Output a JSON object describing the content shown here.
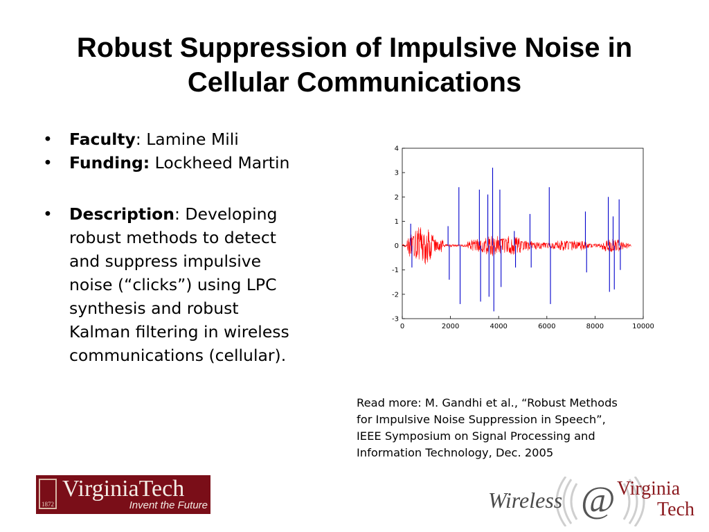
{
  "slide": {
    "title_line1": "Robust Suppression of Impulsive Noise in",
    "title_line2": "Cellular Communications"
  },
  "bullets": {
    "faculty": {
      "label": "Faculty",
      "sep": ": ",
      "value": "Lamine Mili"
    },
    "funding": {
      "label": "Funding:",
      "sep": " ",
      "value": "Lockheed Martin"
    },
    "description": {
      "label": "Description",
      "lines": [
        ": Developing",
        "robust methods to detect",
        "and suppress impulsive",
        "noise (“clicks”) using LPC",
        "synthesis and robust",
        "Kalman filtering in wireless",
        "communications (cellular)."
      ]
    }
  },
  "read_more": {
    "lines": [
      "Read more: M. Gandhi et al., “Robust Methods",
      "for Impulsive Noise Suppression in Speech”,",
      "IEEE Symposium on Signal Processing and",
      "Information Technology, Dec. 2005"
    ]
  },
  "logos": {
    "vt_wordmark": "VirginiaTech",
    "vt_tagline": "Invent the Future",
    "vt_seal_year": "1872",
    "wireless_text": "Wireless",
    "wireless_at": "@",
    "wireless_vt_line1": "Virginia",
    "wireless_vt_line2": "Tech"
  },
  "colors": {
    "vt_maroon": "#7a0e18",
    "signal_red": "#ff0000",
    "spike_blue": "#0000cc"
  },
  "chart_data": {
    "type": "line",
    "xlim": [
      0,
      10000
    ],
    "ylim": [
      -3,
      4
    ],
    "xticks": [
      0,
      2000,
      4000,
      6000,
      8000,
      10000
    ],
    "yticks": [
      4,
      3,
      2,
      1,
      0,
      -1,
      -2,
      -3
    ],
    "grid": false,
    "signal_segments": [
      {
        "start": 200,
        "end": 1700,
        "amp": 0.85
      },
      {
        "start": 2700,
        "end": 6100,
        "amp": 0.45
      },
      {
        "start": 6100,
        "end": 8300,
        "amp": 0.25
      },
      {
        "start": 8300,
        "end": 9400,
        "amp": 0.35
      }
    ],
    "spikes": [
      {
        "x": 350,
        "y": 0.9
      },
      {
        "x": 400,
        "y": -0.9
      },
      {
        "x": 1900,
        "y": 0.8
      },
      {
        "x": 1950,
        "y": -1.4
      },
      {
        "x": 2350,
        "y": 2.4
      },
      {
        "x": 2400,
        "y": -2.4
      },
      {
        "x": 3200,
        "y": 2.3
      },
      {
        "x": 3250,
        "y": -2.3
      },
      {
        "x": 3550,
        "y": 2.1
      },
      {
        "x": 3600,
        "y": -2.1
      },
      {
        "x": 3750,
        "y": 3.2
      },
      {
        "x": 3800,
        "y": -2.7
      },
      {
        "x": 4050,
        "y": 2.3
      },
      {
        "x": 4100,
        "y": -1.7
      },
      {
        "x": 4650,
        "y": 0.6
      },
      {
        "x": 4700,
        "y": -0.9
      },
      {
        "x": 5300,
        "y": 1.3
      },
      {
        "x": 5350,
        "y": -0.9
      },
      {
        "x": 6100,
        "y": 2.4
      },
      {
        "x": 6150,
        "y": -2.4
      },
      {
        "x": 7600,
        "y": 1.4
      },
      {
        "x": 7650,
        "y": -1.1
      },
      {
        "x": 8550,
        "y": 2.0
      },
      {
        "x": 8600,
        "y": -1.9
      },
      {
        "x": 8750,
        "y": 1.2
      },
      {
        "x": 8800,
        "y": -1.8
      },
      {
        "x": 9000,
        "y": 1.9
      },
      {
        "x": 9050,
        "y": -1.0
      }
    ]
  }
}
